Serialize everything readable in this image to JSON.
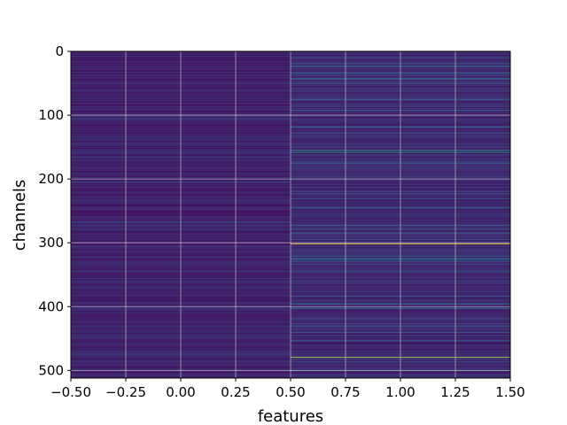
{
  "chart_data": {
    "type": "heatmap",
    "title": "",
    "xlabel": "features",
    "ylabel": "channels",
    "colormap": "viridis",
    "xlim": [
      -0.5,
      1.5
    ],
    "ylim": [
      512,
      0
    ],
    "grid": true,
    "columns": [
      0,
      1
    ],
    "rows": 512,
    "xticks": [
      "−0.50",
      "−0.25",
      "0.00",
      "0.25",
      "0.50",
      "0.75",
      "1.00",
      "1.25",
      "1.50"
    ],
    "xtick_values": [
      -0.5,
      -0.25,
      0.0,
      0.25,
      0.5,
      0.75,
      1.0,
      1.25,
      1.5
    ],
    "yticks": [
      "0",
      "100",
      "200",
      "300",
      "400",
      "500"
    ],
    "ytick_values": [
      0,
      100,
      200,
      300,
      400,
      500
    ],
    "column_0_level": 0.1,
    "column_1_level": 0.12,
    "column_1_bright_rows": [
      {
        "channel": 23,
        "value": 0.45
      },
      {
        "channel": 33,
        "value": 0.4
      },
      {
        "channel": 42,
        "value": 0.35
      },
      {
        "channel": 50,
        "value": 0.32
      },
      {
        "channel": 75,
        "value": 0.3
      },
      {
        "channel": 92,
        "value": 0.35
      },
      {
        "channel": 118,
        "value": 0.3
      },
      {
        "channel": 128,
        "value": 0.28
      },
      {
        "channel": 155,
        "value": 0.55
      },
      {
        "channel": 158,
        "value": 0.5
      },
      {
        "channel": 175,
        "value": 0.3
      },
      {
        "channel": 230,
        "value": 0.42
      },
      {
        "channel": 245,
        "value": 0.35
      },
      {
        "channel": 272,
        "value": 0.35
      },
      {
        "channel": 284,
        "value": 0.4
      },
      {
        "channel": 301,
        "value": 1.0
      },
      {
        "channel": 325,
        "value": 0.45
      },
      {
        "channel": 345,
        "value": 0.3
      },
      {
        "channel": 395,
        "value": 0.42
      },
      {
        "channel": 402,
        "value": 0.4
      },
      {
        "channel": 430,
        "value": 0.32
      },
      {
        "channel": 440,
        "value": 0.3
      },
      {
        "channel": 479,
        "value": 0.9
      },
      {
        "channel": 500,
        "value": 0.3
      }
    ],
    "colors": {
      "background": "#ffffff",
      "grid": "#d0d0d0"
    }
  }
}
